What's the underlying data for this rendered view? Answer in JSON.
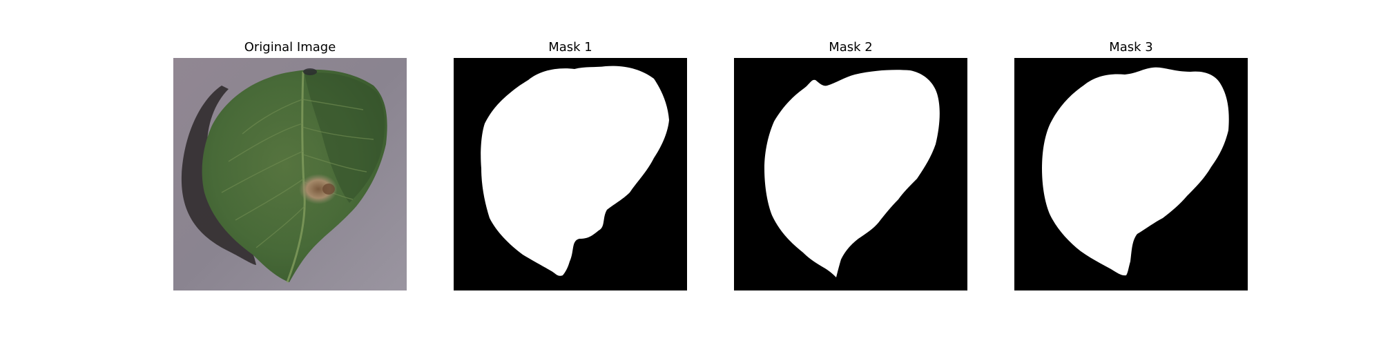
{
  "figure": {
    "background": "#ffffff",
    "panels": [
      {
        "title": "Original Image",
        "kind": "photo",
        "subject": "leaf-photo"
      },
      {
        "title": "Mask 1",
        "kind": "mask",
        "subject": "leaf-mask"
      },
      {
        "title": "Mask 2",
        "kind": "mask",
        "subject": "leaf-mask"
      },
      {
        "title": "Mask 3",
        "kind": "mask",
        "subject": "leaf-mask"
      }
    ]
  },
  "colors": {
    "mask_background": "#000000",
    "mask_foreground": "#ffffff",
    "photo_background": "#8e8791",
    "leaf_green": "#4f6f3f",
    "leaf_dark": "#33502a",
    "shadow": "#2b2727",
    "lesion": "#8c6b4d"
  }
}
